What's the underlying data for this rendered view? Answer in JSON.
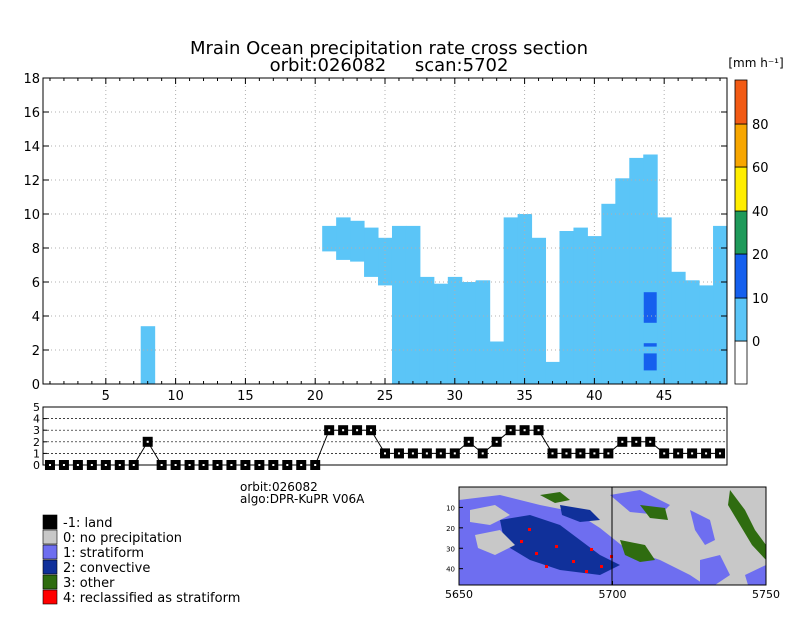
{
  "title": {
    "line1": "Mrain Ocean precipitation rate cross section",
    "line2": "orbit:026082     scan:5702"
  },
  "colorbar": {
    "unit": "[mm h⁻¹]",
    "labels": [
      "0",
      "10",
      "20",
      "40",
      "60",
      "80"
    ],
    "colors": [
      "#ffffff",
      "#5bc5f7",
      "#1560ee",
      "#1f9a5a",
      "#ffee00",
      "#f7a600",
      "#f25a14"
    ]
  },
  "legend": {
    "items": [
      {
        "label": "-1: land",
        "color": "#000000"
      },
      {
        "label": "0: no precipitation",
        "color": "#c8c8c8"
      },
      {
        "label": "1: stratiform",
        "color": "#6e6ef0"
      },
      {
        "label": "2: convective",
        "color": "#10309a"
      },
      {
        "label": "3: other",
        "color": "#2f6c10"
      },
      {
        "label": "4: reclassified as stratiform",
        "color": "#ff0000"
      }
    ]
  },
  "info": {
    "orbit": "orbit:026082",
    "algo": "algo:DPR-KuPR V06A"
  },
  "chart_data": [
    {
      "type": "heatmap",
      "title": "Mrain Ocean precipitation rate cross section",
      "subtitle": "orbit:026082     scan:5702",
      "xlabel": "",
      "ylabel": "",
      "xlim": [
        1,
        49
      ],
      "ylim": [
        0,
        18
      ],
      "x_ticks": [
        5,
        10,
        15,
        20,
        25,
        30,
        35,
        40,
        45
      ],
      "y_ticks": [
        0,
        2,
        4,
        6,
        8,
        10,
        12,
        14,
        16,
        18
      ],
      "grid": true,
      "light_rain_columns": [
        {
          "x": 8,
          "y_min": 0,
          "y_max": 3.4
        },
        {
          "x": 21,
          "y_min": 7.8,
          "y_max": 9.3
        },
        {
          "x": 22,
          "y_min": 7.3,
          "y_max": 9.8
        },
        {
          "x": 23,
          "y_min": 7.2,
          "y_max": 9.6
        },
        {
          "x": 24,
          "y_min": 6.3,
          "y_max": 9.2
        },
        {
          "x": 25,
          "y_min": 5.8,
          "y_max": 8.6
        },
        {
          "x": 26,
          "y_min": 0,
          "y_max": 9.3
        },
        {
          "x": 27,
          "y_min": 0,
          "y_max": 9.3
        },
        {
          "x": 28,
          "y_min": 0,
          "y_max": 6.3
        },
        {
          "x": 29,
          "y_min": 0,
          "y_max": 5.9
        },
        {
          "x": 30,
          "y_min": 0,
          "y_max": 6.3
        },
        {
          "x": 31,
          "y_min": 0,
          "y_max": 6.0
        },
        {
          "x": 32,
          "y_min": 0,
          "y_max": 6.1
        },
        {
          "x": 33,
          "y_min": 0,
          "y_max": 2.5
        },
        {
          "x": 34,
          "y_min": 0,
          "y_max": 9.8
        },
        {
          "x": 35,
          "y_min": 0,
          "y_max": 10.0
        },
        {
          "x": 36,
          "y_min": 0,
          "y_max": 8.6
        },
        {
          "x": 37,
          "y_min": 0,
          "y_max": 1.3
        },
        {
          "x": 38,
          "y_min": 0,
          "y_max": 9.0
        },
        {
          "x": 39,
          "y_min": 0,
          "y_max": 9.2
        },
        {
          "x": 40,
          "y_min": 0,
          "y_max": 8.7
        },
        {
          "x": 41,
          "y_min": 0,
          "y_max": 10.6
        },
        {
          "x": 42,
          "y_min": 0,
          "y_max": 12.1
        },
        {
          "x": 43,
          "y_min": 0,
          "y_max": 13.3
        },
        {
          "x": 44,
          "y_min": 0,
          "y_max": 13.5
        },
        {
          "x": 45,
          "y_min": 0,
          "y_max": 9.8
        },
        {
          "x": 46,
          "y_min": 0,
          "y_max": 6.6
        },
        {
          "x": 47,
          "y_min": 0,
          "y_max": 6.1
        },
        {
          "x": 48,
          "y_min": 0,
          "y_max": 5.8
        },
        {
          "x": 49,
          "y_min": 0,
          "y_max": 9.3
        }
      ],
      "moderate_rain_segments": [
        {
          "x": 44,
          "y_min": 3.6,
          "y_max": 5.4
        },
        {
          "x": 44,
          "y_min": 0.8,
          "y_max": 1.8
        },
        {
          "x": 44,
          "y_min": 2.2,
          "y_max": 2.4
        }
      ]
    },
    {
      "type": "line",
      "xlim": [
        1,
        49
      ],
      "ylim": [
        0,
        5
      ],
      "y_ticks": [
        0,
        1,
        2,
        3,
        4,
        5
      ],
      "x": [
        1,
        2,
        3,
        4,
        5,
        6,
        7,
        8,
        9,
        10,
        11,
        12,
        13,
        14,
        15,
        16,
        17,
        18,
        19,
        20,
        21,
        22,
        23,
        24,
        25,
        26,
        27,
        28,
        29,
        30,
        31,
        32,
        33,
        34,
        35,
        36,
        37,
        38,
        39,
        40,
        41,
        42,
        43,
        44,
        45,
        46,
        47,
        48,
        49
      ],
      "values": [
        0,
        0,
        0,
        0,
        0,
        0,
        0,
        2,
        0,
        0,
        0,
        0,
        0,
        0,
        0,
        0,
        0,
        0,
        0,
        0,
        3,
        3,
        3,
        3,
        1,
        1,
        1,
        1,
        1,
        1,
        2,
        1,
        2,
        3,
        3,
        3,
        1,
        1,
        1,
        1,
        1,
        2,
        2,
        2,
        1,
        1,
        1,
        1,
        1
      ]
    },
    {
      "type": "heatmap",
      "xlim": [
        5650,
        5750
      ],
      "x_ticks": [
        5650,
        5700,
        5750
      ],
      "y_ticks": [
        10,
        20,
        30,
        40
      ],
      "categories": [
        "-1: land",
        "0: no precipitation",
        "1: stratiform",
        "2: convective",
        "3: other",
        "4: reclassified as stratiform"
      ]
    }
  ]
}
